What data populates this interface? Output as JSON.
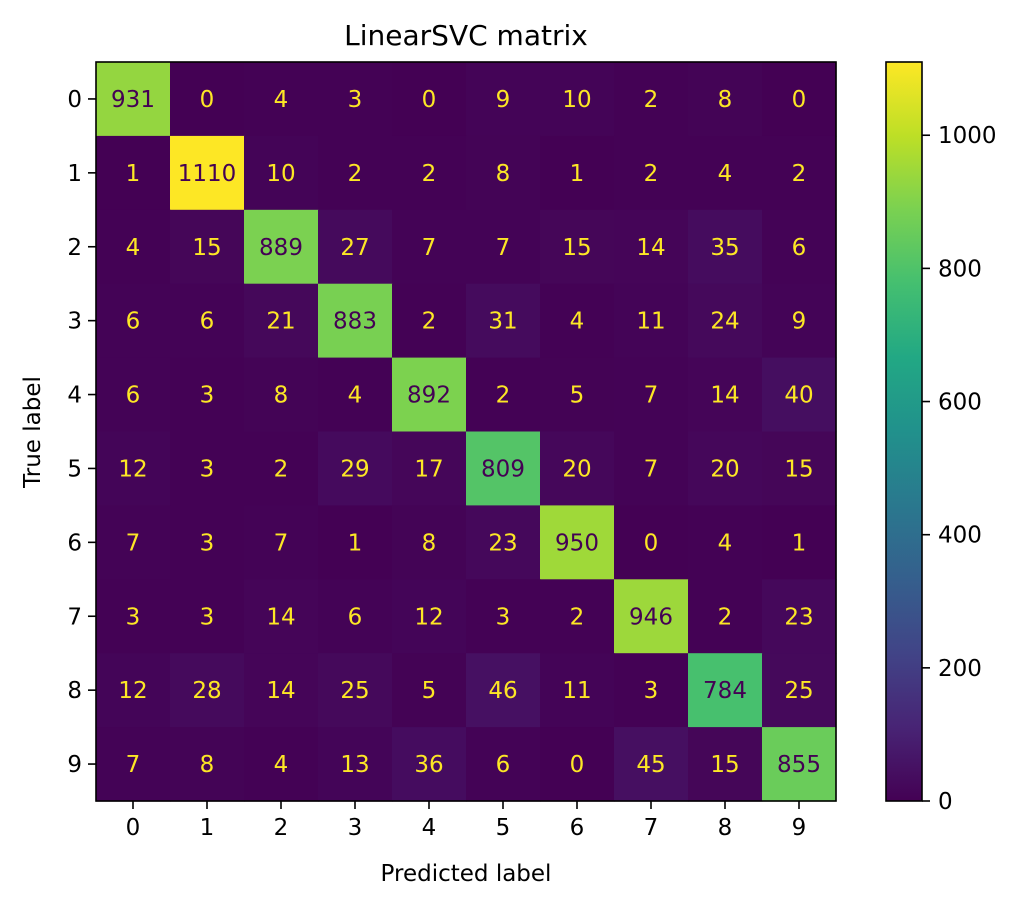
{
  "chart_data": {
    "type": "heatmap",
    "title": "LinearSVC matrix",
    "xlabel": "Predicted label",
    "ylabel": "True label",
    "x_categories": [
      "0",
      "1",
      "2",
      "3",
      "4",
      "5",
      "6",
      "7",
      "8",
      "9"
    ],
    "y_categories": [
      "0",
      "1",
      "2",
      "3",
      "4",
      "5",
      "6",
      "7",
      "8",
      "9"
    ],
    "values": [
      [
        931,
        0,
        4,
        3,
        0,
        9,
        10,
        2,
        8,
        0
      ],
      [
        1,
        1110,
        10,
        2,
        2,
        8,
        1,
        2,
        4,
        2
      ],
      [
        4,
        15,
        889,
        27,
        7,
        7,
        15,
        14,
        35,
        6
      ],
      [
        6,
        6,
        21,
        883,
        2,
        31,
        4,
        11,
        24,
        9
      ],
      [
        6,
        3,
        8,
        4,
        892,
        2,
        5,
        7,
        14,
        40
      ],
      [
        12,
        3,
        2,
        29,
        17,
        809,
        20,
        7,
        20,
        15
      ],
      [
        7,
        3,
        7,
        1,
        8,
        23,
        950,
        0,
        4,
        1
      ],
      [
        3,
        3,
        14,
        6,
        12,
        3,
        2,
        946,
        2,
        23
      ],
      [
        12,
        28,
        14,
        25,
        5,
        46,
        11,
        3,
        784,
        25
      ],
      [
        7,
        8,
        4,
        13,
        36,
        6,
        0,
        45,
        15,
        855
      ]
    ],
    "colorbar": {
      "colormap": "viridis",
      "range": [
        0,
        1110
      ],
      "ticks": [
        0,
        200,
        400,
        600,
        800,
        1000
      ]
    },
    "text_colors": {
      "on_dark": "#fde725",
      "on_light": "#440154"
    },
    "grid": false
  }
}
